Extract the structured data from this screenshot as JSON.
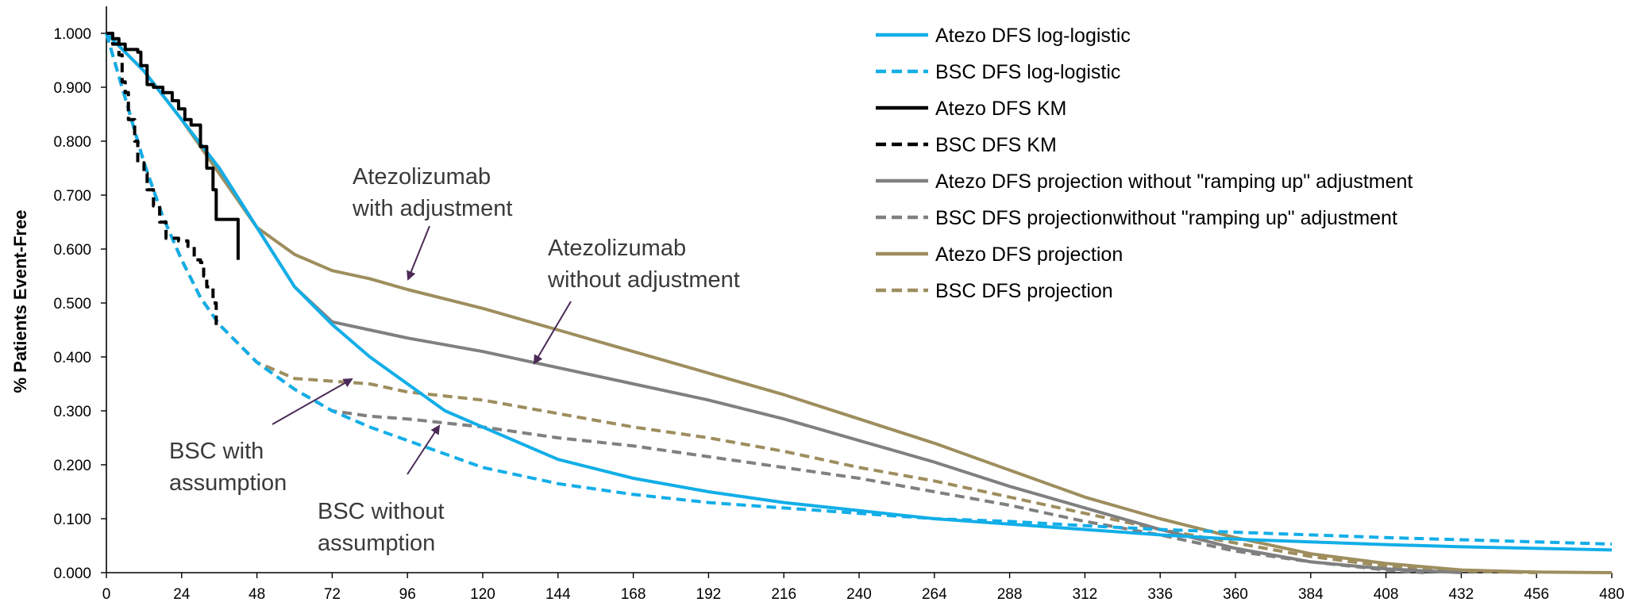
{
  "chart_data": {
    "type": "line",
    "title": "",
    "xlabel": "",
    "ylabel": "% Patients Event-Free",
    "xlim": [
      0,
      480
    ],
    "ylim": [
      0,
      1.0
    ],
    "x_ticks": [
      "0",
      "24",
      "48",
      "72",
      "96",
      "120",
      "144",
      "168",
      "192",
      "216",
      "240",
      "264",
      "288",
      "312",
      "336",
      "360",
      "384",
      "408",
      "432",
      "456",
      "480"
    ],
    "y_ticks": [
      "0.000",
      "0.100",
      "0.200",
      "0.300",
      "0.400",
      "0.500",
      "0.600",
      "0.700",
      "0.800",
      "0.900",
      "1.000"
    ],
    "grid": false,
    "legend_position": "top-right",
    "series": [
      {
        "name": "Atezo DFS log-logistic",
        "color": "#12aee8",
        "dash": "solid",
        "width": 4,
        "points": [
          [
            0,
            1.0
          ],
          [
            12,
            0.93
          ],
          [
            24,
            0.84
          ],
          [
            36,
            0.75
          ],
          [
            48,
            0.64
          ],
          [
            60,
            0.53
          ],
          [
            72,
            0.46
          ],
          [
            84,
            0.4
          ],
          [
            96,
            0.35
          ],
          [
            108,
            0.3
          ],
          [
            120,
            0.27
          ],
          [
            144,
            0.21
          ],
          [
            168,
            0.175
          ],
          [
            192,
            0.15
          ],
          [
            216,
            0.13
          ],
          [
            240,
            0.115
          ],
          [
            264,
            0.1
          ],
          [
            288,
            0.09
          ],
          [
            312,
            0.08
          ],
          [
            336,
            0.07
          ],
          [
            360,
            0.062
          ],
          [
            384,
            0.057
          ],
          [
            408,
            0.052
          ],
          [
            432,
            0.048
          ],
          [
            456,
            0.045
          ],
          [
            480,
            0.042
          ]
        ]
      },
      {
        "name": "BSC DFS log-logistic",
        "color": "#12aee8",
        "dash": "dashed",
        "width": 4,
        "points": [
          [
            0,
            1.0
          ],
          [
            6,
            0.88
          ],
          [
            12,
            0.76
          ],
          [
            18,
            0.66
          ],
          [
            24,
            0.58
          ],
          [
            30,
            0.51
          ],
          [
            36,
            0.46
          ],
          [
            48,
            0.39
          ],
          [
            60,
            0.34
          ],
          [
            72,
            0.3
          ],
          [
            84,
            0.27
          ],
          [
            96,
            0.245
          ],
          [
            108,
            0.22
          ],
          [
            120,
            0.195
          ],
          [
            144,
            0.165
          ],
          [
            168,
            0.145
          ],
          [
            192,
            0.13
          ],
          [
            216,
            0.12
          ],
          [
            240,
            0.11
          ],
          [
            264,
            0.1
          ],
          [
            288,
            0.095
          ],
          [
            312,
            0.087
          ],
          [
            336,
            0.08
          ],
          [
            360,
            0.075
          ],
          [
            384,
            0.07
          ],
          [
            408,
            0.065
          ],
          [
            432,
            0.061
          ],
          [
            456,
            0.057
          ],
          [
            480,
            0.053
          ]
        ]
      },
      {
        "name": "Atezo DFS KM",
        "color": "#000000",
        "dash": "solid",
        "width": 4,
        "points": [
          [
            0,
            1.0
          ],
          [
            2,
            1.0
          ],
          [
            2,
            0.99
          ],
          [
            4,
            0.99
          ],
          [
            4,
            0.98
          ],
          [
            6,
            0.98
          ],
          [
            6,
            0.97
          ],
          [
            10,
            0.97
          ],
          [
            10,
            0.965
          ],
          [
            11,
            0.965
          ],
          [
            11,
            0.94
          ],
          [
            13,
            0.94
          ],
          [
            13,
            0.905
          ],
          [
            15,
            0.905
          ],
          [
            15,
            0.9
          ],
          [
            18,
            0.9
          ],
          [
            18,
            0.89
          ],
          [
            21,
            0.89
          ],
          [
            21,
            0.875
          ],
          [
            23,
            0.875
          ],
          [
            23,
            0.86
          ],
          [
            25,
            0.86
          ],
          [
            25,
            0.84
          ],
          [
            27,
            0.84
          ],
          [
            27,
            0.83
          ],
          [
            30,
            0.83
          ],
          [
            30,
            0.79
          ],
          [
            32,
            0.79
          ],
          [
            32,
            0.75
          ],
          [
            34,
            0.75
          ],
          [
            34,
            0.71
          ],
          [
            35,
            0.71
          ],
          [
            35,
            0.655
          ],
          [
            42,
            0.655
          ],
          [
            42,
            0.58
          ]
        ]
      },
      {
        "name": "BSC DFS KM",
        "color": "#000000",
        "dash": "dashed",
        "width": 4,
        "points": [
          [
            0,
            1.0
          ],
          [
            2,
            1.0
          ],
          [
            2,
            0.98
          ],
          [
            4,
            0.98
          ],
          [
            4,
            0.96
          ],
          [
            5,
            0.96
          ],
          [
            5,
            0.91
          ],
          [
            6,
            0.91
          ],
          [
            6,
            0.89
          ],
          [
            7,
            0.89
          ],
          [
            7,
            0.84
          ],
          [
            9,
            0.84
          ],
          [
            9,
            0.8
          ],
          [
            10,
            0.8
          ],
          [
            10,
            0.76
          ],
          [
            12,
            0.76
          ],
          [
            12,
            0.74
          ],
          [
            13,
            0.74
          ],
          [
            13,
            0.71
          ],
          [
            15,
            0.71
          ],
          [
            15,
            0.68
          ],
          [
            17,
            0.68
          ],
          [
            17,
            0.65
          ],
          [
            19,
            0.65
          ],
          [
            19,
            0.62
          ],
          [
            23,
            0.62
          ],
          [
            23,
            0.615
          ],
          [
            26,
            0.615
          ],
          [
            26,
            0.605
          ],
          [
            28,
            0.605
          ],
          [
            28,
            0.58
          ],
          [
            30,
            0.58
          ],
          [
            30,
            0.575
          ],
          [
            31,
            0.575
          ],
          [
            31,
            0.55
          ],
          [
            32,
            0.55
          ],
          [
            32,
            0.53
          ],
          [
            34,
            0.53
          ],
          [
            34,
            0.5
          ],
          [
            35,
            0.5
          ],
          [
            35,
            0.45
          ]
        ]
      },
      {
        "name": "Atezo DFS projection without \"ramping up\" adjustment",
        "color": "#808080",
        "dash": "solid",
        "width": 4,
        "points": [
          [
            0,
            1.0
          ],
          [
            12,
            0.93
          ],
          [
            24,
            0.84
          ],
          [
            36,
            0.75
          ],
          [
            48,
            0.64
          ],
          [
            60,
            0.53
          ],
          [
            72,
            0.465
          ],
          [
            84,
            0.45
          ],
          [
            96,
            0.435
          ],
          [
            120,
            0.41
          ],
          [
            144,
            0.38
          ],
          [
            168,
            0.35
          ],
          [
            192,
            0.32
          ],
          [
            216,
            0.285
          ],
          [
            240,
            0.245
          ],
          [
            264,
            0.205
          ],
          [
            288,
            0.16
          ],
          [
            312,
            0.12
          ],
          [
            336,
            0.08
          ],
          [
            360,
            0.045
          ],
          [
            384,
            0.02
          ],
          [
            408,
            0.007
          ],
          [
            432,
            0.0
          ]
        ]
      },
      {
        "name": "BSC DFS projectionwithout \"ramping up\" adjustment",
        "color": "#808080",
        "dash": "dashed",
        "width": 4,
        "points": [
          [
            0,
            1.0
          ],
          [
            6,
            0.88
          ],
          [
            12,
            0.76
          ],
          [
            18,
            0.66
          ],
          [
            24,
            0.58
          ],
          [
            30,
            0.51
          ],
          [
            36,
            0.46
          ],
          [
            48,
            0.39
          ],
          [
            60,
            0.34
          ],
          [
            72,
            0.3
          ],
          [
            84,
            0.29
          ],
          [
            96,
            0.285
          ],
          [
            120,
            0.27
          ],
          [
            144,
            0.25
          ],
          [
            168,
            0.235
          ],
          [
            192,
            0.215
          ],
          [
            216,
            0.195
          ],
          [
            240,
            0.175
          ],
          [
            264,
            0.15
          ],
          [
            288,
            0.125
          ],
          [
            312,
            0.095
          ],
          [
            336,
            0.07
          ],
          [
            360,
            0.04
          ],
          [
            384,
            0.02
          ],
          [
            408,
            0.005
          ],
          [
            420,
            0.0
          ]
        ]
      },
      {
        "name": "Atezo DFS projection",
        "color": "#9e8e5e",
        "dash": "solid",
        "width": 4,
        "points": [
          [
            0,
            1.0
          ],
          [
            12,
            0.93
          ],
          [
            24,
            0.84
          ],
          [
            36,
            0.74
          ],
          [
            48,
            0.64
          ],
          [
            60,
            0.59
          ],
          [
            72,
            0.56
          ],
          [
            84,
            0.545
          ],
          [
            96,
            0.525
          ],
          [
            120,
            0.49
          ],
          [
            144,
            0.45
          ],
          [
            168,
            0.41
          ],
          [
            192,
            0.37
          ],
          [
            216,
            0.33
          ],
          [
            240,
            0.285
          ],
          [
            264,
            0.24
          ],
          [
            288,
            0.19
          ],
          [
            312,
            0.14
          ],
          [
            336,
            0.1
          ],
          [
            360,
            0.065
          ],
          [
            384,
            0.035
          ],
          [
            408,
            0.017
          ],
          [
            432,
            0.005
          ],
          [
            456,
            0.001
          ],
          [
            480,
            0.0
          ]
        ]
      },
      {
        "name": "BSC DFS projection",
        "color": "#9e8e5e",
        "dash": "dashed",
        "width": 4,
        "points": [
          [
            0,
            1.0
          ],
          [
            6,
            0.88
          ],
          [
            12,
            0.76
          ],
          [
            18,
            0.66
          ],
          [
            24,
            0.58
          ],
          [
            30,
            0.51
          ],
          [
            36,
            0.46
          ],
          [
            48,
            0.39
          ],
          [
            60,
            0.36
          ],
          [
            72,
            0.355
          ],
          [
            84,
            0.35
          ],
          [
            96,
            0.335
          ],
          [
            120,
            0.32
          ],
          [
            144,
            0.295
          ],
          [
            168,
            0.27
          ],
          [
            192,
            0.25
          ],
          [
            216,
            0.225
          ],
          [
            240,
            0.195
          ],
          [
            264,
            0.17
          ],
          [
            288,
            0.14
          ],
          [
            312,
            0.11
          ],
          [
            336,
            0.08
          ],
          [
            360,
            0.055
          ],
          [
            384,
            0.03
          ],
          [
            408,
            0.012
          ],
          [
            432,
            0.003
          ],
          [
            456,
            0.0
          ]
        ]
      }
    ],
    "annotations": [
      {
        "lines": [
          "Atezolizumab",
          "with adjustment"
        ]
      },
      {
        "lines": [
          "Atezolizumab",
          "without adjustment"
        ]
      },
      {
        "lines": [
          "BSC with",
          "assumption"
        ]
      },
      {
        "lines": [
          "BSC without",
          "assumption"
        ]
      }
    ],
    "annotation_color": "#3a3a3a",
    "arrow_color": "#4b2a57"
  }
}
